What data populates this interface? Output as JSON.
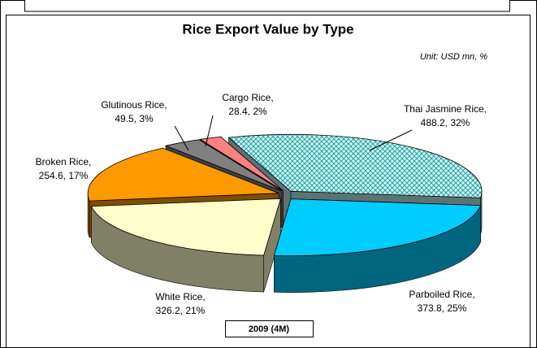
{
  "chart_data": {
    "type": "pie",
    "title": "Rice Export Value by Type",
    "subtitle": "Unit: USD mn, %",
    "period_label": "2009 (4M)",
    "categories": [
      "Thai Jasmine Rice,",
      "Parboiled Rice,",
      "White Rice,",
      "Broken Rice,",
      "Glutinous Rice,",
      "Cargo Rice,"
    ],
    "values": [
      488.2,
      373.8,
      326.2,
      254.6,
      49.5,
      28.4
    ],
    "value_labels": [
      "488.2, 32%",
      "373.8, 25%",
      "326.2, 21%",
      "254.6, 17%",
      "49.5, 3%",
      "28.4, 2%"
    ],
    "colors": [
      "#ccffff",
      "#00ccff",
      "#ffffcc",
      "#ff9900",
      "#808080",
      "#ff8080"
    ],
    "patterns": [
      "crosshatch",
      null,
      null,
      null,
      null,
      null
    ]
  }
}
